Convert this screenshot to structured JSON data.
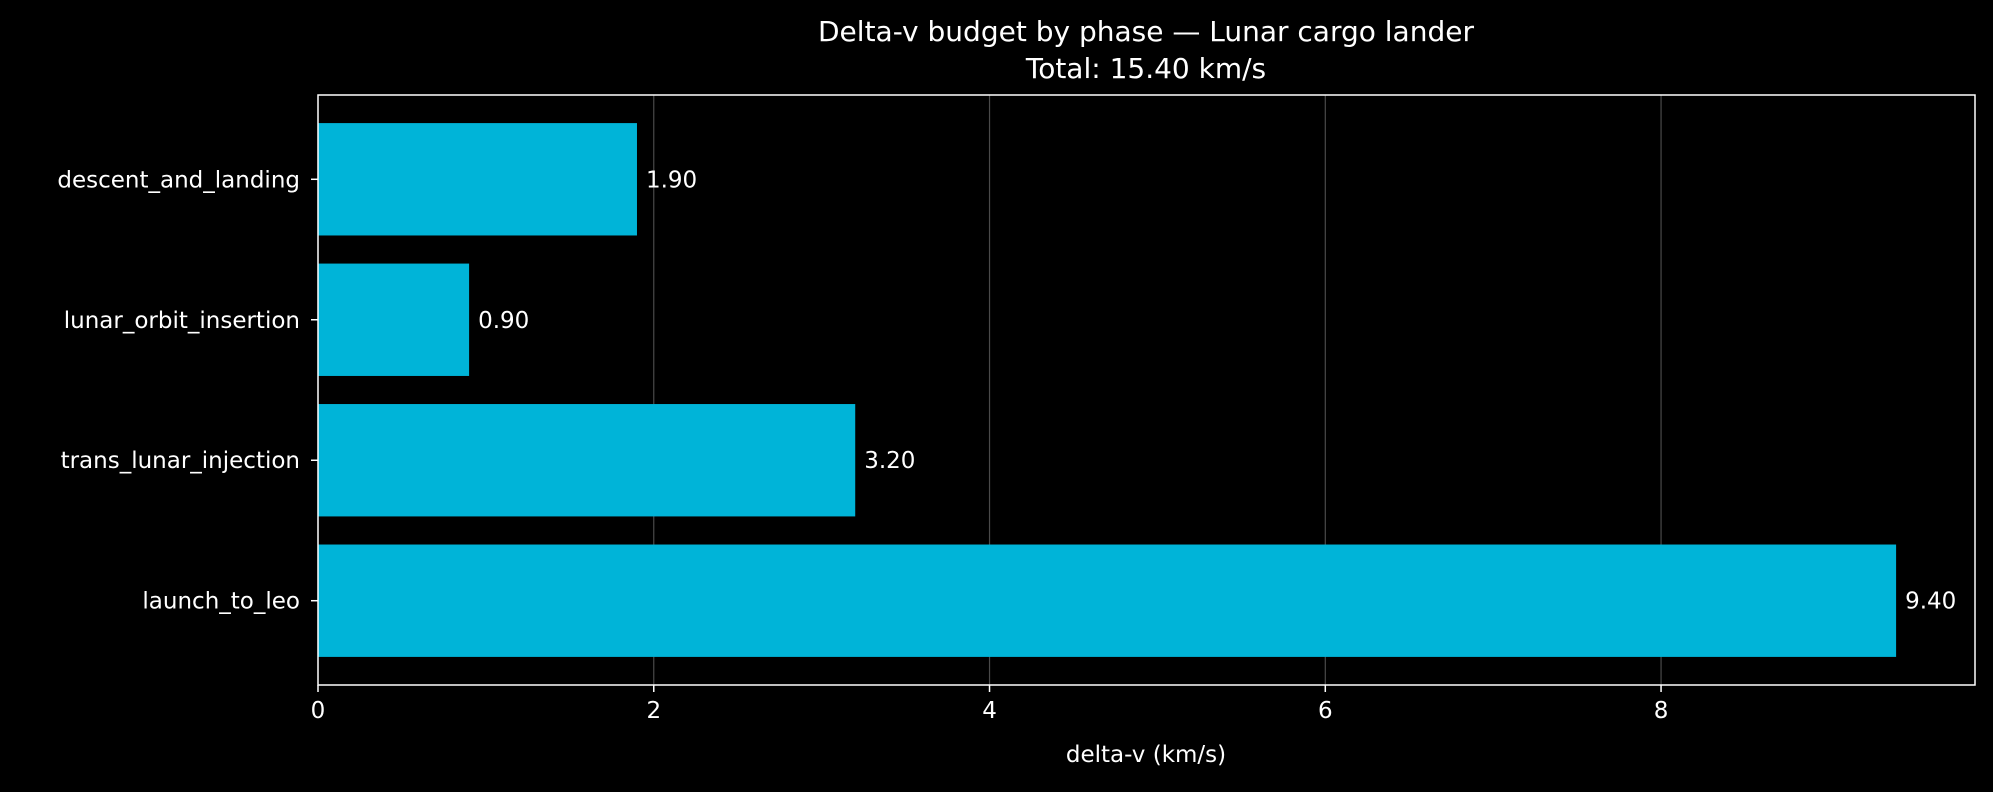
{
  "chart_data": {
    "type": "bar",
    "orientation": "horizontal",
    "title": "Delta-v budget by phase — Lunar cargo lander",
    "subtitle": "Total: 15.40 km/s",
    "xlabel": "delta-v (km/s)",
    "ylabel": "",
    "categories": [
      "launch_to_leo",
      "trans_lunar_injection",
      "lunar_orbit_insertion",
      "descent_and_landing"
    ],
    "values": [
      9.4,
      3.2,
      0.9,
      1.9
    ],
    "value_labels": [
      "9.40",
      "3.20",
      "0.90",
      "1.90"
    ],
    "xlim": [
      0,
      9.87
    ],
    "xticks": [
      0,
      2,
      4,
      6,
      8
    ],
    "xtick_labels": [
      "0",
      "2",
      "4",
      "6",
      "8"
    ],
    "grid": "vertical",
    "colors": {
      "background": "#000000",
      "bar": "#00b4d8",
      "text": "#ffffff",
      "grid": "#4a4a4a"
    }
  }
}
